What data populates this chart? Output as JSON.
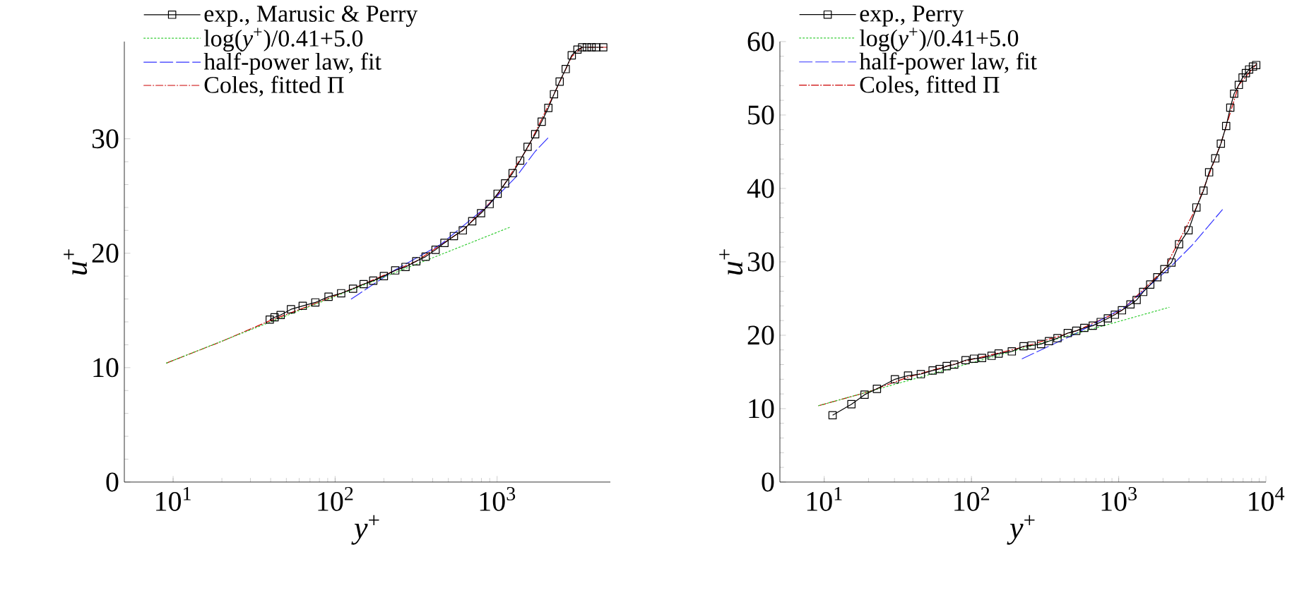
{
  "chart_data": [
    {
      "type": "line",
      "xlabel": "*y*$^{+}$",
      "ylabel": "*u*$^{+}$",
      "log": "x",
      "legend": "top left",
      "xlim": [
        5,
        5000
      ],
      "ylim": [
        0,
        38.5
      ],
      "xticks": [
        {
          "value": 10,
          "label": "10$^{1}$"
        },
        {
          "value": 100,
          "label": "10$^{2}$"
        },
        {
          "value": 1000,
          "label": "10$^{3}$"
        }
      ],
      "yticks": [
        0,
        10,
        20,
        30
      ],
      "series": [
        {
          "name": "exp., Marusic & Perry",
          "color": "#000000",
          "marker": "square",
          "line_style": "solid",
          "x": [
            39.5,
            42.3,
            46.1,
            53.4,
            63.1,
            75.5,
            91.1,
            109,
            129,
            150,
            172,
            200,
            235,
            272,
            317,
            362,
            417,
            473,
            541,
            614,
            702,
            796,
            899,
            1007,
            1120,
            1247,
            1387,
            1542,
            1718,
            1885,
            2071,
            2244,
            2432,
            2651,
            2889,
            3133,
            3350,
            3581,
            3828,
            4093,
            4519
          ],
          "values": [
            14.2,
            14.4,
            14.6,
            15.1,
            15.4,
            15.7,
            16.2,
            16.5,
            16.9,
            17.3,
            17.6,
            18.0,
            18.5,
            18.8,
            19.3,
            19.7,
            20.3,
            20.9,
            21.5,
            22.0,
            22.8,
            23.5,
            24.3,
            25.2,
            26.1,
            27.0,
            28.1,
            29.3,
            30.4,
            31.5,
            32.7,
            33.9,
            35.0,
            36.1,
            37.3,
            37.8,
            38.0,
            38.0,
            38.0,
            38.0,
            38.0
          ]
        },
        {
          "name": "log(*y*$^{+}$)/0.41+5.0",
          "color": "#33cc33",
          "marker": "none",
          "line_style": "dotted",
          "x": [
            9.1,
            1213
          ],
          "values": [
            10.4,
            22.3
          ]
        },
        {
          "name": "half-power law, fit",
          "color": "#3333ff",
          "marker": "none",
          "line_style": "dashed",
          "x": [
            126,
            232,
            452,
            881,
            1315,
            1718,
            2099
          ],
          "values": [
            16.0,
            18.5,
            20.8,
            24.2,
            26.7,
            28.9,
            30.2
          ]
        },
        {
          "name": "Coles, fitted Π",
          "color": "#cc0000",
          "marker": "none",
          "line_style": "dashdot",
          "x": [
            9.1,
            20,
            39.5,
            75.5,
            150,
            317,
            614,
            1007,
            1542,
            2244,
            2889,
            3350,
            4830
          ],
          "values": [
            10.4,
            12.3,
            14.1,
            15.6,
            17.3,
            19.3,
            22.0,
            25.1,
            29.2,
            33.9,
            37.2,
            38.0,
            38.0
          ]
        }
      ]
    },
    {
      "type": "line",
      "xlabel": "*y*$^{+}$",
      "ylabel": "*u*$^{+}$",
      "log": "x",
      "legend": "top left",
      "xlim": [
        5,
        10000
      ],
      "ylim": [
        0,
        60
      ],
      "xticks": [
        {
          "value": 10,
          "label": "10$^{1}$"
        },
        {
          "value": 100,
          "label": "10$^{2}$"
        },
        {
          "value": 1000,
          "label": "10$^{3}$"
        },
        {
          "value": 10000,
          "label": "10$^{4}$"
        }
      ],
      "yticks": [
        0,
        10,
        20,
        30,
        40,
        50,
        60
      ],
      "series": [
        {
          "name": "exp., Perry",
          "color": "#000000",
          "marker": "square",
          "line_style": "solid",
          "x": [
            11.4,
            15.3,
            18.8,
            22.8,
            30.2,
            37.1,
            45.3,
            54.5,
            60.8,
            67.9,
            76.4,
            91.2,
            104,
            118,
            137,
            153,
            188,
            226,
            256,
            297,
            336,
            384,
            451,
            515,
            584,
            667,
            755,
            844,
            942,
            1052,
            1202,
            1324,
            1467,
            1638,
            1830,
            2043,
            2282,
            2570,
            2979,
            3373,
            3767,
            4113,
            4530,
            4943,
            5370,
            5728,
            6081,
            6546,
            6946,
            7311,
            7691,
            8166,
            8592
          ],
          "values": [
            9.1,
            10.6,
            11.9,
            12.7,
            14.0,
            14.5,
            14.7,
            15.2,
            15.4,
            15.8,
            16.0,
            16.6,
            16.8,
            16.9,
            17.2,
            17.5,
            17.8,
            18.5,
            18.6,
            18.8,
            19.2,
            19.6,
            20.3,
            20.6,
            21.0,
            21.3,
            21.8,
            22.3,
            22.8,
            23.4,
            24.2,
            24.8,
            25.9,
            26.9,
            27.9,
            29.0,
            29.9,
            32.4,
            34.3,
            37.4,
            39.7,
            42.2,
            44.1,
            46.1,
            48.5,
            51.0,
            52.9,
            54.1,
            55.1,
            55.7,
            56.2,
            56.6,
            56.8
          ]
        },
        {
          "name": "log(*y*$^{+}$)/0.41+5.0",
          "color": "#33cc33",
          "marker": "none",
          "line_style": "dotted",
          "x": [
            9.16,
            2199
          ],
          "values": [
            10.4,
            23.8
          ]
        },
        {
          "name": "half-power law, fit",
          "color": "#3333ff",
          "marker": "none",
          "line_style": "dashed",
          "x": [
            221,
            497,
            1117,
            2168,
            3133,
            5058
          ],
          "values": [
            16.8,
            20.1,
            23.9,
            29.0,
            32.2,
            37.1
          ]
        },
        {
          "name": "Coles, fitted Π",
          "color": "#cc0000",
          "marker": "none",
          "line_style": "dashdot",
          "x": [
            9.16,
            20,
            37.1,
            91.2,
            226,
            515,
            1052,
            2043,
            3373,
            4943,
            6546,
            8592
          ],
          "values": [
            10.4,
            12.3,
            14.3,
            16.5,
            18.4,
            20.6,
            23.4,
            29.0,
            37.4,
            46.1,
            54.1,
            56.9
          ]
        }
      ]
    }
  ]
}
